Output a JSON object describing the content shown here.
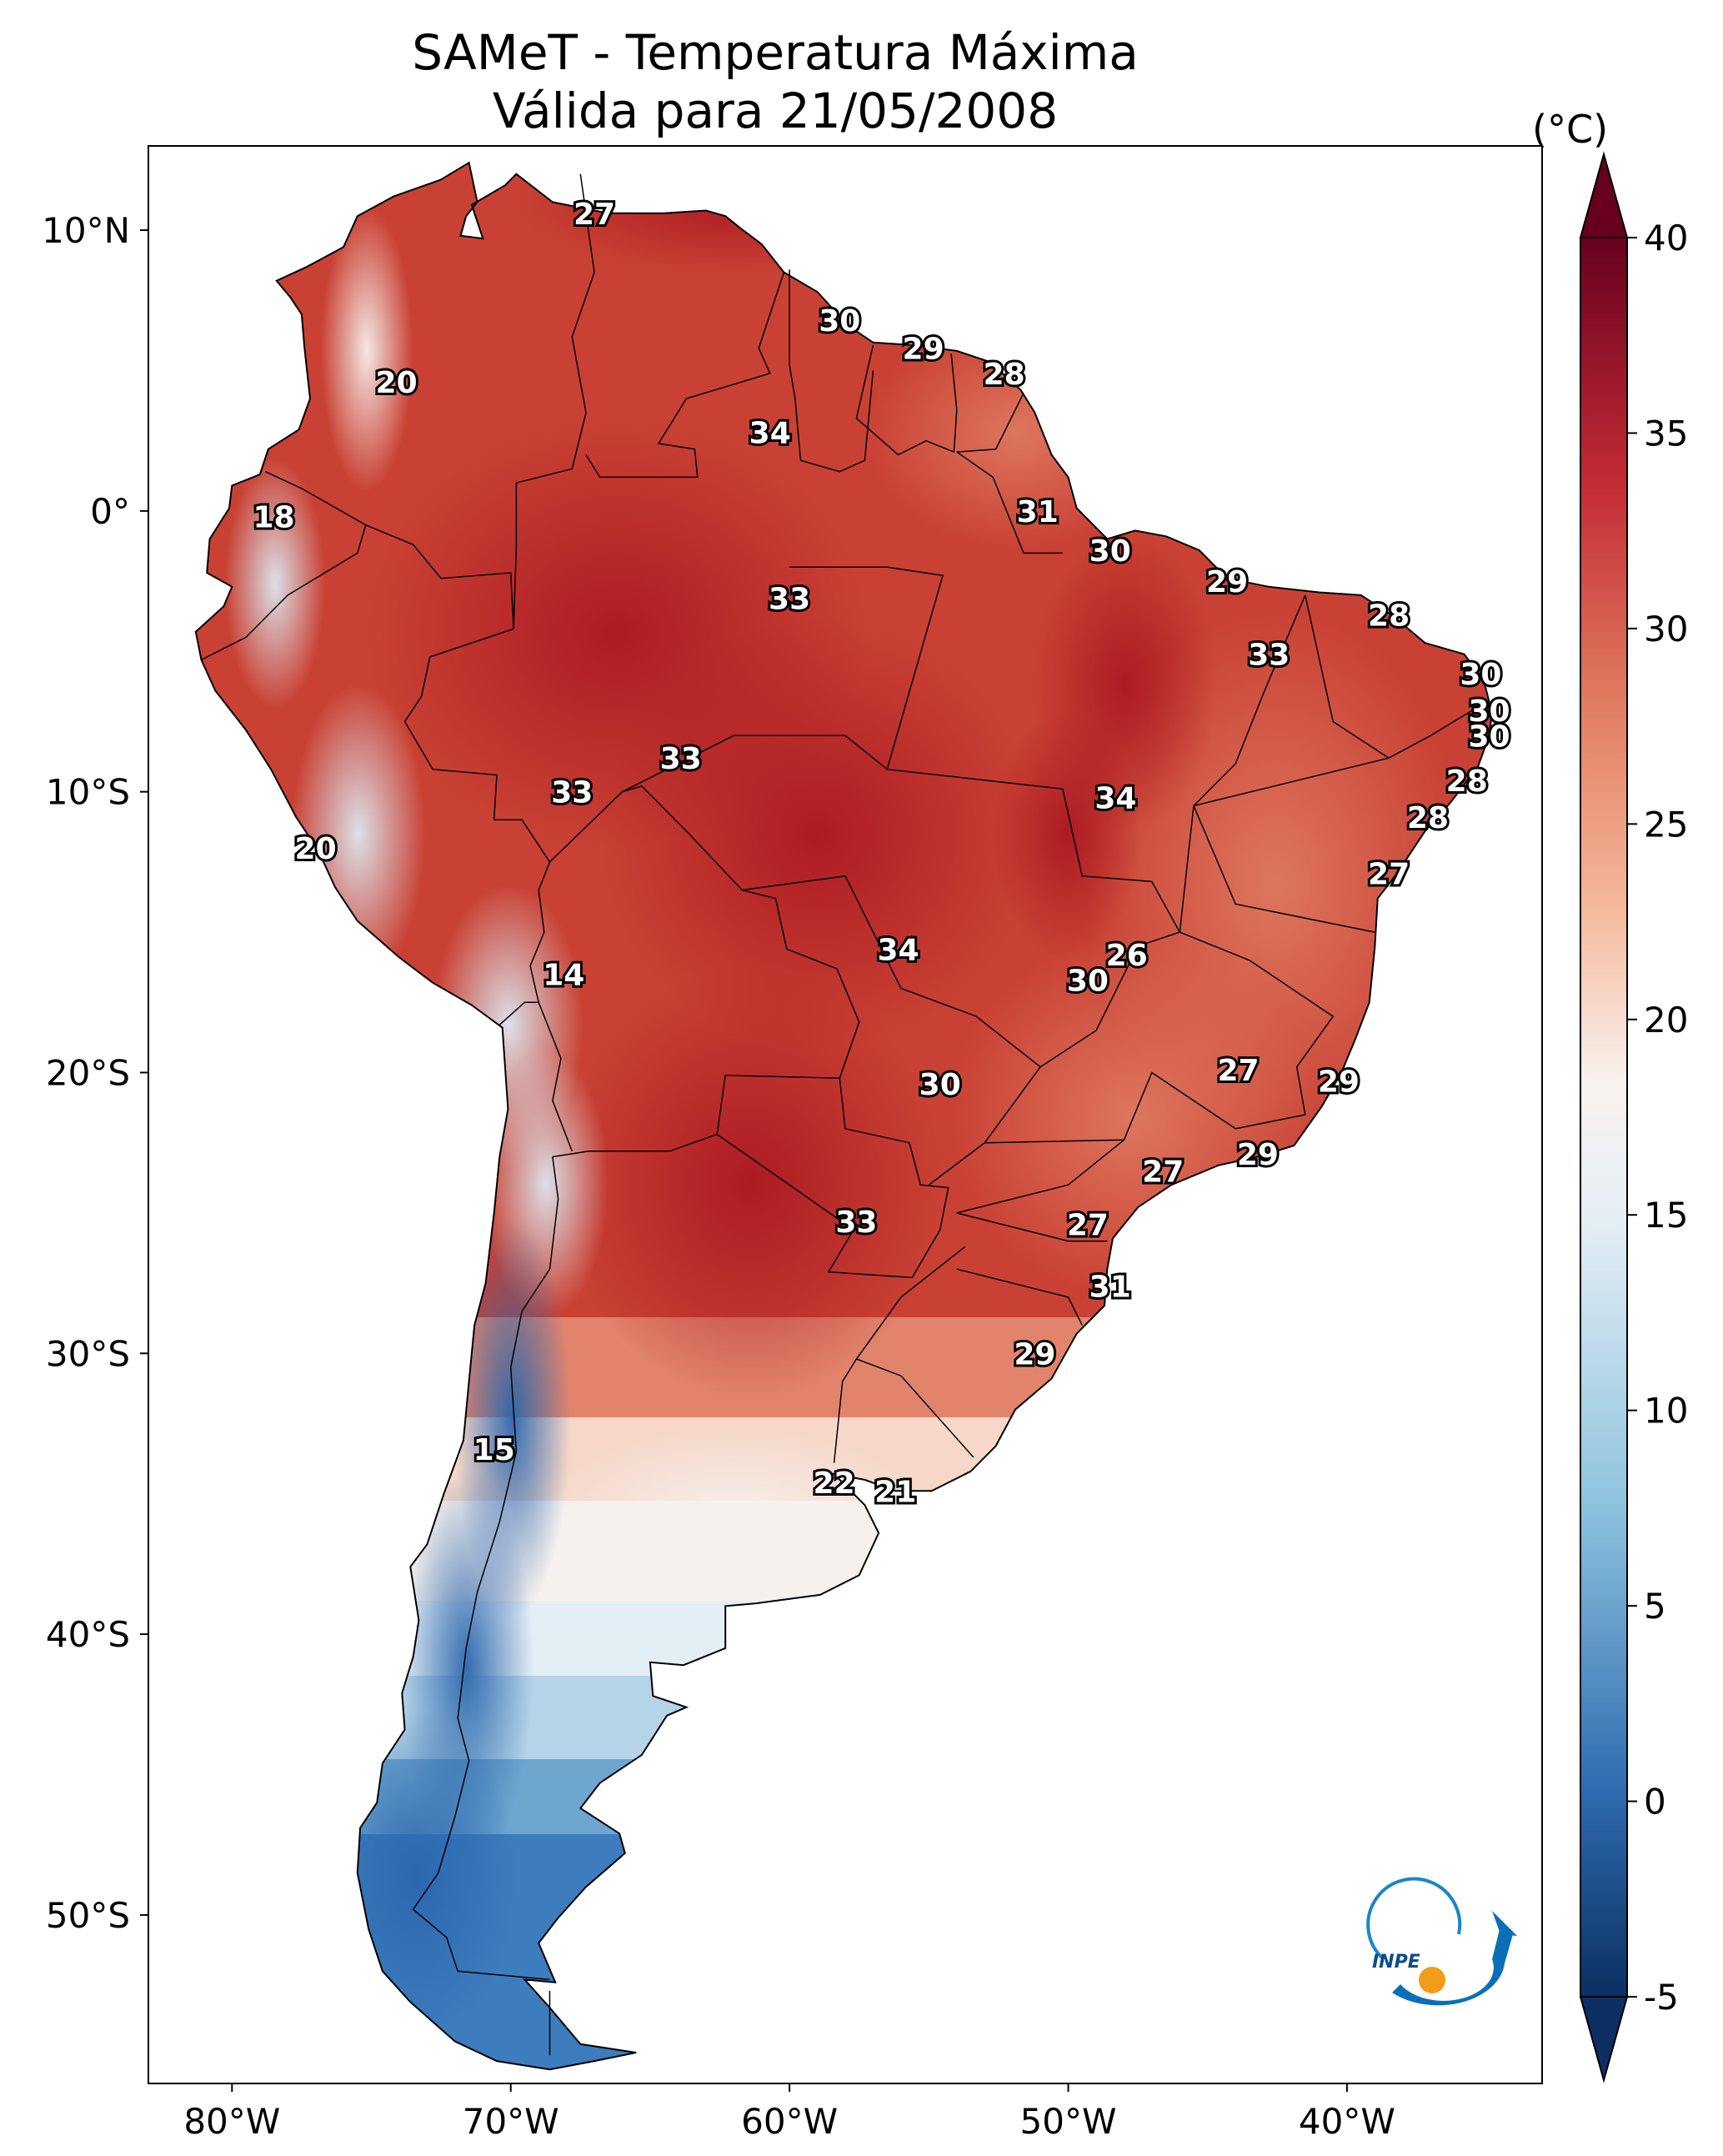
{
  "title_line1": "SAMeT - Temperatura Máxima",
  "title_line2": "Válida para 21/05/2008",
  "colorbar": {
    "unit": "(°C)",
    "ticks": [
      "40",
      "35",
      "30",
      "25",
      "20",
      "15",
      "10",
      "5",
      "0",
      "-5"
    ],
    "range": [
      -5,
      40
    ]
  },
  "axes": {
    "lat_ticks": [
      "10°N",
      "0°",
      "10°S",
      "20°S",
      "30°S",
      "40°S",
      "50°S"
    ],
    "lon_ticks": [
      "80°W",
      "70°W",
      "60°W",
      "50°W",
      "40°W"
    ]
  },
  "station_labels": [
    {
      "value": "27",
      "lon": -67.0,
      "lat": 10.6
    },
    {
      "value": "20",
      "lon": -74.1,
      "lat": 4.6
    },
    {
      "value": "30",
      "lon": -58.2,
      "lat": 6.8
    },
    {
      "value": "29",
      "lon": -55.2,
      "lat": 5.8
    },
    {
      "value": "28",
      "lon": -52.3,
      "lat": 4.9
    },
    {
      "value": "34",
      "lon": -60.7,
      "lat": 2.8
    },
    {
      "value": "18",
      "lon": -78.5,
      "lat": -0.2
    },
    {
      "value": "31",
      "lon": -51.1,
      "lat": 0.0
    },
    {
      "value": "30",
      "lon": -48.5,
      "lat": -1.4
    },
    {
      "value": "33",
      "lon": -60.0,
      "lat": -3.1
    },
    {
      "value": "29",
      "lon": -44.3,
      "lat": -2.5
    },
    {
      "value": "28",
      "lon": -38.5,
      "lat": -3.7
    },
    {
      "value": "33",
      "lon": -42.8,
      "lat": -5.1
    },
    {
      "value": "30",
      "lon": -35.2,
      "lat": -5.8
    },
    {
      "value": "30",
      "lon": -34.9,
      "lat": -7.1
    },
    {
      "value": "30",
      "lon": -34.9,
      "lat": -8.0
    },
    {
      "value": "33",
      "lon": -63.9,
      "lat": -8.8
    },
    {
      "value": "33",
      "lon": -67.8,
      "lat": -10.0
    },
    {
      "value": "34",
      "lon": -48.3,
      "lat": -10.2
    },
    {
      "value": "28",
      "lon": -35.7,
      "lat": -9.6
    },
    {
      "value": "28",
      "lon": -37.1,
      "lat": -10.9
    },
    {
      "value": "20",
      "lon": -77.0,
      "lat": -12.0
    },
    {
      "value": "27",
      "lon": -38.5,
      "lat": -12.9
    },
    {
      "value": "26",
      "lon": -47.9,
      "lat": -15.8
    },
    {
      "value": "34",
      "lon": -56.1,
      "lat": -15.6
    },
    {
      "value": "30",
      "lon": -49.3,
      "lat": -16.7
    },
    {
      "value": "14",
      "lon": -68.1,
      "lat": -16.5
    },
    {
      "value": "27",
      "lon": -43.9,
      "lat": -19.9
    },
    {
      "value": "29",
      "lon": -40.3,
      "lat": -20.3
    },
    {
      "value": "30",
      "lon": -54.6,
      "lat": -20.4
    },
    {
      "value": "29",
      "lon": -43.2,
      "lat": -22.9
    },
    {
      "value": "27",
      "lon": -46.6,
      "lat": -23.5
    },
    {
      "value": "33",
      "lon": -57.6,
      "lat": -25.3
    },
    {
      "value": "27",
      "lon": -49.3,
      "lat": -25.4
    },
    {
      "value": "31",
      "lon": -48.5,
      "lat": -27.6
    },
    {
      "value": "29",
      "lon": -51.2,
      "lat": -30.0
    },
    {
      "value": "15",
      "lon": -70.6,
      "lat": -33.4
    },
    {
      "value": "22",
      "lon": -58.4,
      "lat": -34.6
    },
    {
      "value": "21",
      "lon": -56.2,
      "lat": -34.9
    }
  ]
}
